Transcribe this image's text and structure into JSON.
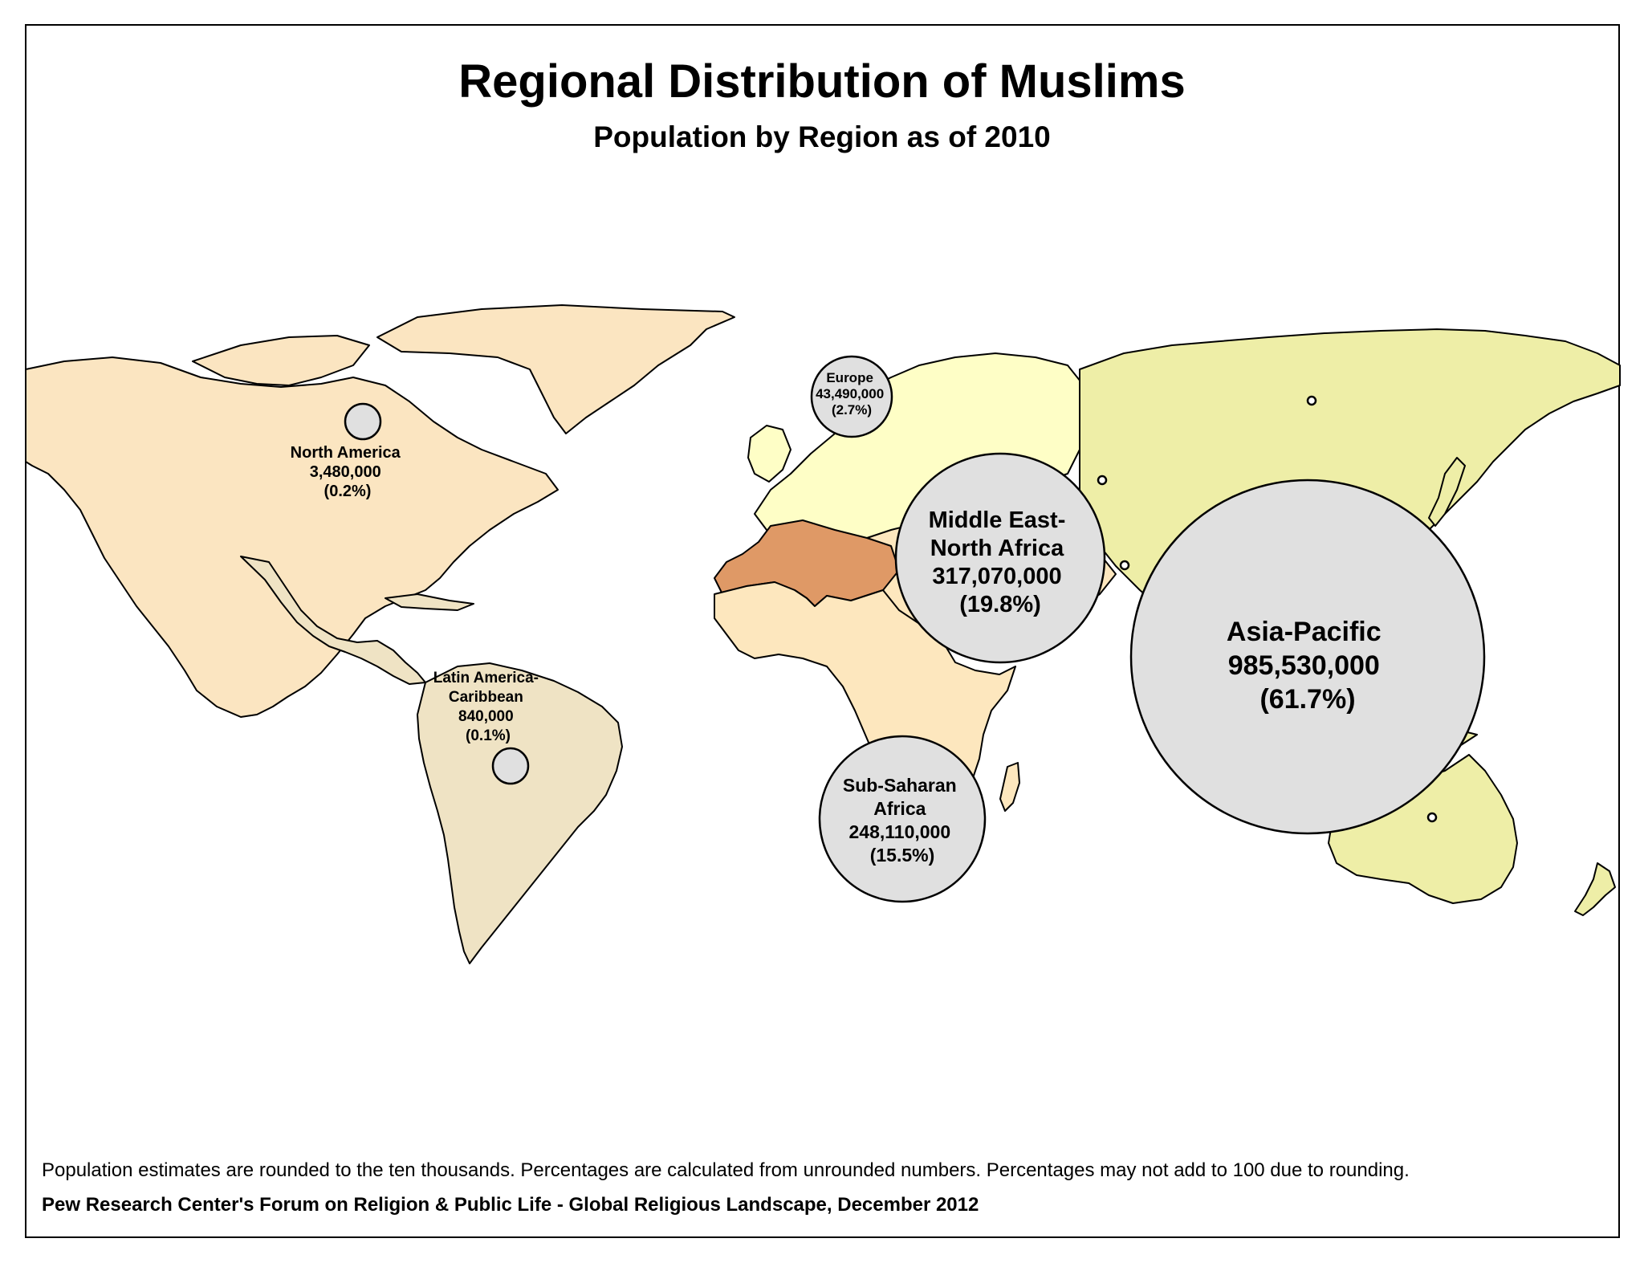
{
  "title": "Regional Distribution of Muslims",
  "subtitle": "Population by Region as of 2010",
  "footnote": "Population estimates are rounded to the ten thousands. Percentages are calculated from unrounded numbers. Percentages may not add to 100 due to rounding.",
  "source": "Pew Research Center's Forum on Religion & Public Life - Global Religious Landscape, December 2012",
  "colors": {
    "north_america": "#fbe5c1",
    "latin_america": "#efe3c4",
    "europe": "#fefec6",
    "asia_pacific": "#eeeea7",
    "mena_light": "#fde7be",
    "mena_dark": "#df9966",
    "sub_saharan": "#fde7be",
    "bubble": "#e0e0e0"
  },
  "regions": [
    {
      "name": "North America",
      "population": "3,480,000",
      "percent": "(0.2%)",
      "label_lines": [
        "North America",
        "3,480,000",
        "(0.2%)"
      ]
    },
    {
      "name": "Latin America-Caribbean",
      "population": "840,000",
      "percent": "(0.1%)",
      "label_lines": [
        "Latin America-",
        "Caribbean",
        "840,000",
        "(0.1%)"
      ]
    },
    {
      "name": "Europe",
      "population": "43,490,000",
      "percent": "(2.7%)",
      "label_lines": [
        "Europe",
        "43,490,000",
        "(2.7%)"
      ]
    },
    {
      "name": "Middle East-North Africa",
      "population": "317,070,000",
      "percent": "(19.8%)",
      "label_lines": [
        "Middle East-",
        "North Africa",
        "317,070,000",
        "(19.8%)"
      ]
    },
    {
      "name": "Sub-Saharan Africa",
      "population": "248,110,000",
      "percent": "(15.5%)",
      "label_lines": [
        "Sub-Saharan",
        "Africa",
        "248,110,000",
        "(15.5%)"
      ]
    },
    {
      "name": "Asia-Pacific",
      "population": "985,530,000",
      "percent": "(61.7%)",
      "label_lines": [
        "Asia-Pacific",
        "985,530,000",
        "(61.7%)"
      ]
    }
  ]
}
